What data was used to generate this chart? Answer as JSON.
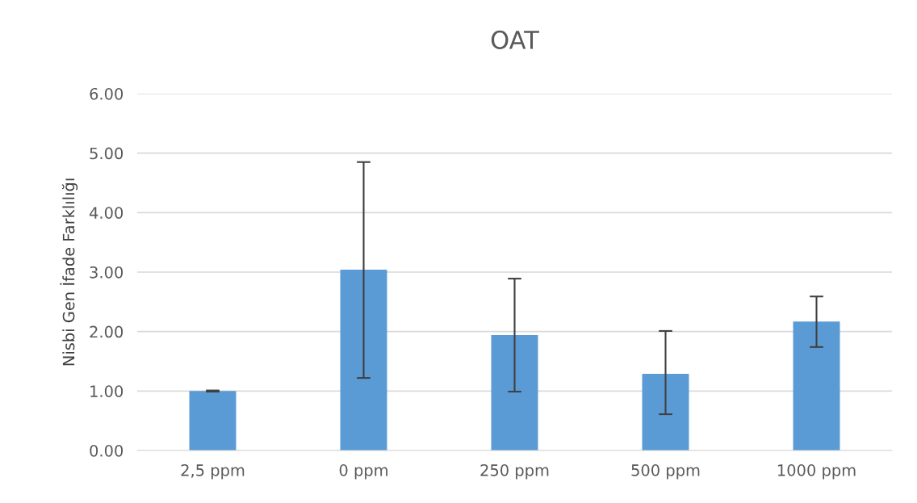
{
  "chart_data": {
    "type": "bar",
    "title": "OAT",
    "ylabel": "Nisbi Gen İfade Farklılığı",
    "categories": [
      "2,5 ppm",
      "0 ppm",
      "250 ppm",
      "500 ppm",
      "1000 ppm"
    ],
    "values": [
      1.0,
      3.04,
      1.94,
      1.29,
      2.17
    ],
    "errors": [
      [
        0.99,
        1.01
      ],
      [
        1.22,
        4.85
      ],
      [
        0.99,
        2.89
      ],
      [
        0.61,
        2.01
      ],
      [
        1.74,
        2.59
      ]
    ],
    "color": "#5b9bd5",
    "ylim": [
      0,
      6
    ],
    "yticks": [
      {
        "value": 0,
        "label": "0.00"
      },
      {
        "value": 1,
        "label": "1.00"
      },
      {
        "value": 2,
        "label": "2.00"
      },
      {
        "value": 3,
        "label": "3.00"
      },
      {
        "value": 4,
        "label": "4.00"
      },
      {
        "value": 5,
        "label": "5.00"
      },
      {
        "value": 6,
        "label": "6.00"
      }
    ],
    "grid": "y",
    "legend": false
  }
}
